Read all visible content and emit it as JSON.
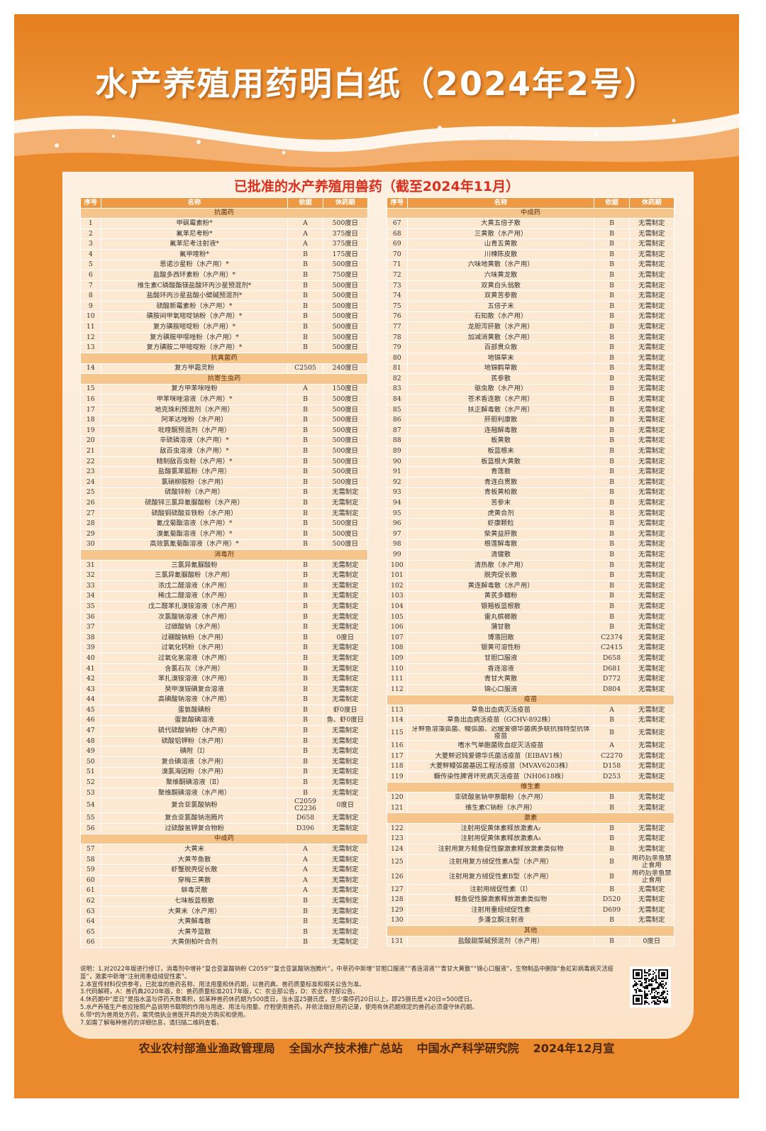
{
  "header": {
    "title": "水产养殖用药明白纸（2024年2号）",
    "subtitle": "已批准的水产养殖用兽药（截至2024年11月）"
  },
  "columns": [
    "序号",
    "名称",
    "依据",
    "休药期"
  ],
  "tables": [
    {
      "sections": [
        {
          "title": "抗菌药",
          "rows": [
            [
              "1",
              "甲砜霉素粉*",
              "A",
              "500度日"
            ],
            [
              "2",
              "氟苯尼考粉*",
              "A",
              "375度日"
            ],
            [
              "3",
              "氟苯尼考注射液*",
              "A",
              "375度日"
            ],
            [
              "4",
              "氟甲喹粉*",
              "B",
              "175度日"
            ],
            [
              "5",
              "恩诺沙星粉（水产用）*",
              "B",
              "500度日"
            ],
            [
              "6",
              "盐酸多西环素粉（水产用）*",
              "B",
              "750度日"
            ],
            [
              "7",
              "维生素C磷酸酯镁盐酸环丙沙星预混剂*",
              "B",
              "500度日"
            ],
            [
              "8",
              "盐酸环丙沙星盐酸小檗碱预混剂*",
              "B",
              "500度日"
            ],
            [
              "9",
              "硫酸新霉素粉（水产用）*",
              "B",
              "500度日"
            ],
            [
              "10",
              "磺胺间甲氧嘧啶钠粉（水产用）*",
              "B",
              "500度日"
            ],
            [
              "11",
              "复方磺胺嘧啶粉（水产用）*",
              "B",
              "500度日"
            ],
            [
              "12",
              "复方磺胺甲噁唑粉（水产用）*",
              "B",
              "500度日"
            ],
            [
              "13",
              "复方磺胺二甲嘧啶粉（水产用）*",
              "B",
              "500度日"
            ]
          ]
        },
        {
          "title": "抗真菌药",
          "rows": [
            [
              "14",
              "复方甲霜灵粉",
              "C2505",
              "240度日"
            ]
          ]
        },
        {
          "title": "抗寄生虫药",
          "rows": [
            [
              "15",
              "复方甲苯咪唑粉",
              "A",
              "150度日"
            ],
            [
              "16",
              "甲苯咪唑溶液（水产用）*",
              "B",
              "500度日"
            ],
            [
              "17",
              "地克珠利预混剂（水产用）",
              "B",
              "500度日"
            ],
            [
              "18",
              "阿苯达唑粉（水产用）",
              "B",
              "500度日"
            ],
            [
              "19",
              "吡喹酮预混剂（水产用）",
              "B",
              "500度日"
            ],
            [
              "20",
              "辛硫磷溶液（水产用）*",
              "B",
              "500度日"
            ],
            [
              "21",
              "敌百虫溶液（水产用）*",
              "B",
              "500度日"
            ],
            [
              "22",
              "精制敌百虫粉（水产用）*",
              "B",
              "500度日"
            ],
            [
              "23",
              "盐酸氯苯胍粉（水产用）",
              "B",
              "500度日"
            ],
            [
              "24",
              "氯硝柳胺粉（水产用）",
              "B",
              "500度日"
            ],
            [
              "25",
              "硫酸锌粉（水产用）",
              "B",
              "无需制定"
            ],
            [
              "26",
              "硫酸锌三氯异氰脲酸粉（水产用）",
              "B",
              "无需制定"
            ],
            [
              "27",
              "硫酸铜硫酸亚铁粉（水产用）",
              "B",
              "无需制定"
            ],
            [
              "28",
              "氰戊菊酯溶液（水产用）*",
              "B",
              "500度日"
            ],
            [
              "29",
              "溴氰菊酯溶液（水产用）*",
              "B",
              "500度日"
            ],
            [
              "30",
              "高效氯氰菊酯溶液（水产用）*",
              "B",
              "500度日"
            ]
          ]
        },
        {
          "title": "消毒剂",
          "rows": [
            [
              "31",
              "三氯异氰脲酸粉",
              "B",
              "无需制定"
            ],
            [
              "32",
              "三氯异氰脲酸粉（水产用）",
              "B",
              "无需制定"
            ],
            [
              "33",
              "浓戊二醛溶液（水产用）",
              "B",
              "无需制定"
            ],
            [
              "34",
              "稀戊二醛溶液（水产用）",
              "B",
              "无需制定"
            ],
            [
              "35",
              "戊二醛苯扎溴铵溶液（水产用）",
              "B",
              "无需制定"
            ],
            [
              "36",
              "次氯酸钠溶液（水产用）",
              "B",
              "无需制定"
            ],
            [
              "37",
              "过碳酸钠（水产用）",
              "B",
              "无需制定"
            ],
            [
              "38",
              "过硼酸钠粉（水产用）",
              "B",
              "0度日"
            ],
            [
              "39",
              "过氧化钙粉（水产用）",
              "B",
              "无需制定"
            ],
            [
              "40",
              "过氧化氢溶液（水产用）",
              "B",
              "无需制定"
            ],
            [
              "41",
              "含氯石灰（水产用）",
              "B",
              "无需制定"
            ],
            [
              "42",
              "苯扎溴铵溶液（水产用）",
              "B",
              "无需制定"
            ],
            [
              "43",
              "癸甲溴铵碘复合溶液",
              "B",
              "无需制定"
            ],
            [
              "44",
              "高碘酸钠溶液（水产用）",
              "B",
              "无需制定"
            ],
            [
              "45",
              "蛋氨酸碘粉",
              "B",
              "虾0度日"
            ],
            [
              "46",
              "蛋氨酸碘溶液",
              "B",
              "鱼、虾0度日"
            ],
            [
              "47",
              "硫代硫酸钠粉（水产用）",
              "B",
              "无需制定"
            ],
            [
              "48",
              "硫酸铝钾粉（水产用）",
              "B",
              "无需制定"
            ],
            [
              "49",
              "碘附（Ⅰ）",
              "B",
              "无需制定"
            ],
            [
              "50",
              "复合碘溶液（水产用）",
              "B",
              "无需制定"
            ],
            [
              "51",
              "溴氯海因粉（水产用）",
              "B",
              "无需制定"
            ],
            [
              "52",
              "聚维酮碘溶液（Ⅱ）",
              "B",
              "无需制定"
            ],
            [
              "53",
              "聚维酮碘溶液（水产用）",
              "B",
              "无需制定"
            ],
            [
              "54",
              "复合亚氯酸钠粉",
              "C2059 C2236",
              "0度日"
            ],
            [
              "55",
              "复合亚氯酸钠泡腾片",
              "D658",
              "无需制定"
            ],
            [
              "56",
              "过硫酸氢钾复合物粉",
              "D396",
              "无需制定"
            ]
          ]
        },
        {
          "title": "中成药",
          "rows": [
            [
              "57",
              "大黄末",
              "A",
              "无需制定"
            ],
            [
              "58",
              "大黄芩鱼散",
              "A",
              "无需制定"
            ],
            [
              "59",
              "虾蟹脱壳促长散",
              "A",
              "无需制定"
            ],
            [
              "60",
              "穿梅三黄散",
              "A",
              "无需制定"
            ],
            [
              "61",
              "蚌毒灵散",
              "A",
              "无需制定"
            ],
            [
              "62",
              "七味板蓝根散",
              "B",
              "无需制定"
            ],
            [
              "63",
              "大黄末（水产用）",
              "B",
              "无需制定"
            ],
            [
              "64",
              "大黄解毒散",
              "B",
              "无需制定"
            ],
            [
              "65",
              "大黄芩蓝散",
              "B",
              "无需制定"
            ],
            [
              "66",
              "大黄侧柏叶合剂",
              "B",
              "无需制定"
            ]
          ]
        }
      ]
    },
    {
      "sections": [
        {
          "title": "中成药",
          "rows": [
            [
              "67",
              "大黄五倍子散",
              "B",
              "无需制定"
            ],
            [
              "68",
              "三黄散（水产用）",
              "B",
              "无需制定"
            ],
            [
              "69",
              "山青五黄散",
              "B",
              "无需制定"
            ],
            [
              "70",
              "川楝陈皮散",
              "B",
              "无需制定"
            ],
            [
              "71",
              "六味地黄散（水产用）",
              "B",
              "无需制定"
            ],
            [
              "72",
              "六味黄龙散",
              "B",
              "无需制定"
            ],
            [
              "73",
              "双黄白头翁散",
              "B",
              "无需制定"
            ],
            [
              "74",
              "双黄苦参散",
              "B",
              "无需制定"
            ],
            [
              "75",
              "五倍子末",
              "B",
              "无需制定"
            ],
            [
              "76",
              "石知散（水产用）",
              "B",
              "无需制定"
            ],
            [
              "77",
              "龙胆泻肝散（水产用）",
              "B",
              "无需制定"
            ],
            [
              "78",
              "加减消黄散（水产用）",
              "B",
              "无需制定"
            ],
            [
              "79",
              "百部贯众散",
              "B",
              "无需制定"
            ],
            [
              "80",
              "地锦草末",
              "B",
              "无需制定"
            ],
            [
              "81",
              "地锦鹤草散",
              "B",
              "无需制定"
            ],
            [
              "82",
              "芪参散",
              "B",
              "无需制定"
            ],
            [
              "83",
              "驱虫散（水产用）",
              "B",
              "无需制定"
            ],
            [
              "84",
              "苍术香连散（水产用）",
              "B",
              "无需制定"
            ],
            [
              "85",
              "扶正解毒散（水产用）",
              "B",
              "无需制定"
            ],
            [
              "86",
              "肝胆利康散",
              "B",
              "无需制定"
            ],
            [
              "87",
              "连翘解毒散",
              "B",
              "无需制定"
            ],
            [
              "88",
              "板黄散",
              "B",
              "无需制定"
            ],
            [
              "89",
              "板蓝根末",
              "B",
              "无需制定"
            ],
            [
              "90",
              "板蓝根大黄散",
              "B",
              "无需制定"
            ],
            [
              "91",
              "青莲散",
              "B",
              "无需制定"
            ],
            [
              "92",
              "青连白贯散",
              "B",
              "无需制定"
            ],
            [
              "93",
              "青板黄柏散",
              "B",
              "无需制定"
            ],
            [
              "94",
              "苦参末",
              "B",
              "无需制定"
            ],
            [
              "95",
              "虎黄合剂",
              "B",
              "无需制定"
            ],
            [
              "96",
              "虾康颗粒",
              "B",
              "无需制定"
            ],
            [
              "97",
              "柴黄益肝散",
              "B",
              "无需制定"
            ],
            [
              "98",
              "根莲解毒散",
              "B",
              "无需制定"
            ],
            [
              "99",
              "清健散",
              "B",
              "无需制定"
            ],
            [
              "100",
              "清热散（水产用）",
              "B",
              "无需制定"
            ],
            [
              "101",
              "脱壳促长散",
              "B",
              "无需制定"
            ],
            [
              "102",
              "黄连解毒散（水产用）",
              "B",
              "无需制定"
            ],
            [
              "103",
              "黄芪多糖粉",
              "B",
              "无需制定"
            ],
            [
              "104",
              "银翘板蓝根散",
              "B",
              "无需制定"
            ],
            [
              "105",
              "雷丸槟榔散",
              "B",
              "无需制定"
            ],
            [
              "106",
              "蒲甘散",
              "B",
              "无需制定"
            ],
            [
              "107",
              "博落回散",
              "C2374",
              "无需制定"
            ],
            [
              "108",
              "银黄可溶性粉",
              "C2415",
              "无需制定"
            ],
            [
              "109",
              "甘胆口服液",
              "D658",
              "无需制定"
            ],
            [
              "110",
              "香连溶液",
              "D681",
              "无需制定"
            ],
            [
              "111",
              "青甘大黄散",
              "D772",
              "无需制定"
            ],
            [
              "112",
              "锦心口服液",
              "D804",
              "无需制定"
            ]
          ]
        },
        {
          "title": "疫苗",
          "rows": [
            [
              "113",
              "草鱼出血病灭活疫苗",
              "A",
              "无需制定"
            ],
            [
              "114",
              "草鱼出血病活疫苗（GCHV-892株）",
              "B",
              "无需制定"
            ],
            [
              "115",
              "牙鲆鱼溶藻弧菌、鳗弧菌、迟缓爱德华菌病多联抗独特型抗体疫苗",
              "B",
              "无需制定"
            ],
            [
              "116",
              "嗜水气单胞菌败血症灭活疫苗",
              "A",
              "无需制定"
            ],
            [
              "117",
              "大菱鲆迟钝爱德华氏菌活疫苗（EIBAV1株）",
              "C2270",
              "无需制定"
            ],
            [
              "118",
              "大菱鲆鳗弧菌基因工程活疫苗（MVAV6203株）",
              "D158",
              "无需制定"
            ],
            [
              "119",
              "鳜传染性脾肾坏死病灭活疫苗（NH0618株）",
              "D253",
              "无需制定"
            ]
          ]
        },
        {
          "title": "维生素",
          "rows": [
            [
              "120",
              "亚硫酸氢钠甲萘醌粉（水产用）",
              "B",
              "无需制定"
            ],
            [
              "121",
              "维生素C钠粉（水产用）",
              "B",
              "无需制定"
            ]
          ]
        },
        {
          "title": "激素",
          "rows": [
            [
              "122",
              "注射用促黄体素释放激素A₂",
              "B",
              "无需制定"
            ],
            [
              "123",
              "注射用促黄体素释放激素A₃",
              "B",
              "无需制定"
            ],
            [
              "124",
              "注射用复方鲑鱼促性腺激素释放激素类似物",
              "B",
              "无需制定"
            ],
            [
              "125",
              "注射用复方绒促性素A型（水产用）",
              "B",
              "用药后亲鱼禁止食用"
            ],
            [
              "126",
              "注射用复方绒促性素B型（水产用）",
              "B",
              "用药后亲鱼禁止食用"
            ],
            [
              "127",
              "注射用绒促性素（Ⅰ）",
              "B",
              "无需制定"
            ],
            [
              "128",
              "鲑鱼促性腺激素释放激素类似物",
              "D520",
              "无需制定"
            ],
            [
              "129",
              "注射用重组绒促性素",
              "D699",
              "无需制定"
            ],
            [
              "130",
              "多潘立酮注射液",
              "B",
              "无需制定"
            ]
          ]
        },
        {
          "title": "其他",
          "rows": [
            [
              "131",
              "盐酸甜菜碱预混剂（水产用）",
              "B",
              "0度日"
            ]
          ]
        }
      ]
    }
  ],
  "notes": [
    "说明：1.对2022年版进行修订，消毒剂中增补“复合亚氯酸钠粉 C2059”“复合亚氯酸钠泡腾片”，中草药中新增“甘胆口服液”“香连溶液”“青甘大黄散”“锦心口服液”，生物制品中删除“鱼虹彩病毒病灭活疫苗”，激素中新增“注射用重组绒促性素”。",
    "2.本宣传材料仅供参考，已批准的兽药名称、用法用量和休药期，以兽药典、兽药质量标准和相关公告为准。",
    "3.代码解释，A：兽药典2020年版，B：兽药质量标准2017年版，C：农业部公告，D：农业农村部公告。",
    "4.休药期中“度日”是指水温与停药天数乘积，如某种兽药休药期为500度日，当水温25摄氏度，至少需停药20日以上，即25摄氏度×20日=500度日。",
    "5.水产养殖生产者应按照产品说明书载明的作用与用途、用法与用量、疗程使用兽药，并依法做好用药记录，使用有休药期规定的兽药必须遵守休药期。",
    "6.带*的为兽用处方药，需凭借执业兽医开具的处方购买和使用。",
    "7.如需了解每种兽药的详细信息，请扫描二维码查看。"
  ],
  "footer": [
    "农业农村部渔业渔政管理局",
    "全国水产技术推广总站",
    "中国水产科学研究院",
    "2024年12月宣"
  ]
}
